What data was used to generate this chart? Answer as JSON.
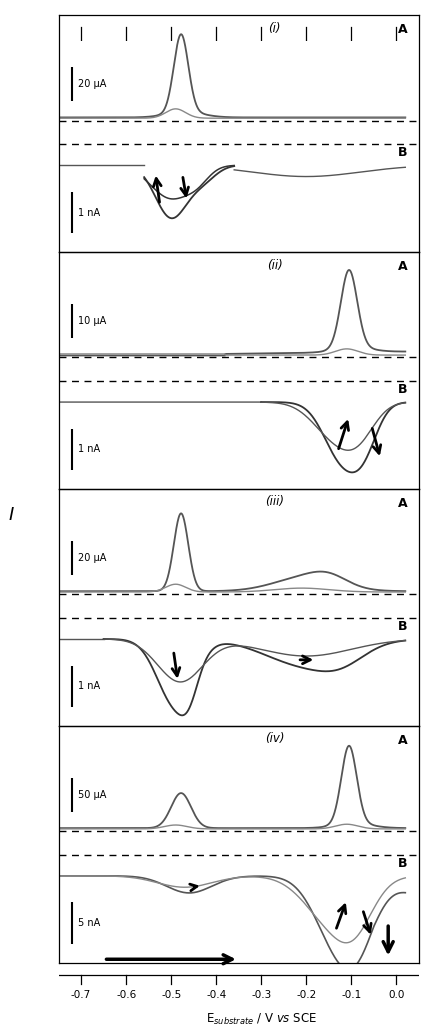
{
  "xlim": [
    -0.75,
    0.05
  ],
  "xticks": [
    -0.7,
    -0.6,
    -0.5,
    -0.4,
    -0.3,
    -0.2,
    -0.1,
    0.0
  ],
  "xticklabels": [
    "-0.7",
    "-0.6",
    "-0.5",
    "-0.4",
    "-0.3",
    "-0.2",
    "-0.1",
    "0.0"
  ],
  "xlabel": "E$_{substrate}$ / V $\\it{vs}$ SCE",
  "ylabel": "I",
  "panel_labels": [
    "(i)",
    "(ii)",
    "(iii)",
    "(iv)"
  ],
  "scale_A": [
    "20 μA",
    "10 μA",
    "20 μA",
    "50 μA"
  ],
  "scale_B": [
    "1 nA",
    "1 nA",
    "1 nA",
    "5 nA"
  ],
  "line_color": "#555555",
  "line_color2": "#888888",
  "bg": "white"
}
